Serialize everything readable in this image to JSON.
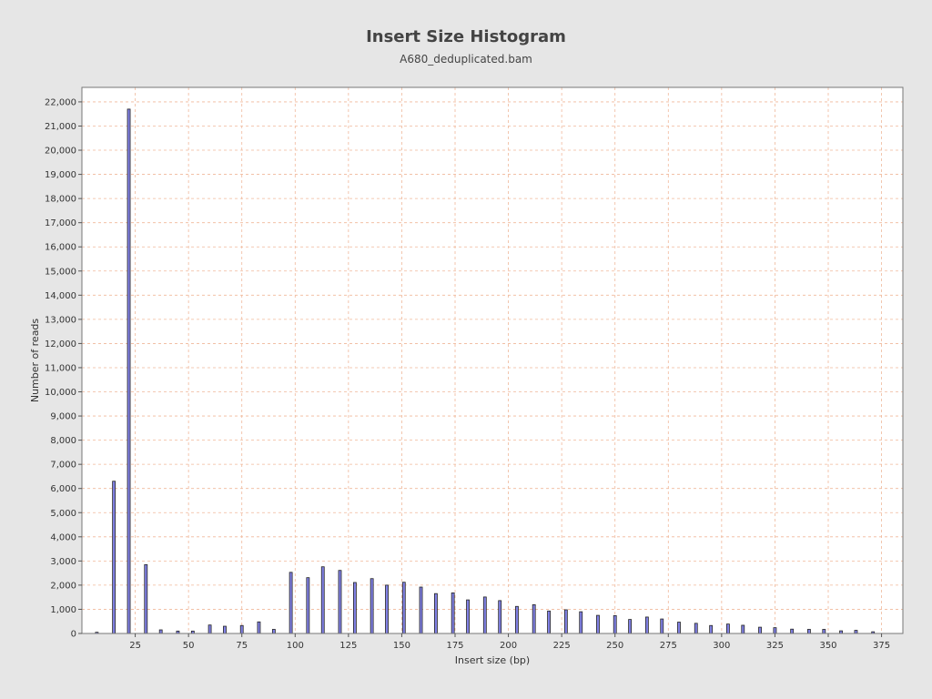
{
  "chart_data": {
    "type": "bar",
    "title": "Insert Size Histogram",
    "subtitle": "A680_deduplicated.bam",
    "xlabel": "Insert size (bp)",
    "ylabel": "Number of reads",
    "xlim": [
      0,
      385
    ],
    "ylim": [
      0,
      22600
    ],
    "grid": true,
    "x_ticks": [
      25,
      50,
      75,
      100,
      125,
      150,
      175,
      200,
      225,
      250,
      275,
      300,
      325,
      350,
      375
    ],
    "x_tick_labels": [
      "25",
      "50",
      "75",
      "100",
      "125",
      "150",
      "175",
      "200",
      "225",
      "250",
      "275",
      "300",
      "325",
      "350",
      "375"
    ],
    "y_ticks": [
      0,
      1000,
      2000,
      3000,
      4000,
      5000,
      6000,
      7000,
      8000,
      9000,
      10000,
      11000,
      12000,
      13000,
      14000,
      15000,
      16000,
      17000,
      18000,
      19000,
      20000,
      21000,
      22000
    ],
    "y_tick_labels": [
      "0",
      "1,000",
      "2,000",
      "3,000",
      "4,000",
      "5,000",
      "6,000",
      "7,000",
      "8,000",
      "9,000",
      "10,000",
      "11,000",
      "12,000",
      "13,000",
      "14,000",
      "15,000",
      "16,000",
      "17,000",
      "18,000",
      "19,000",
      "20,000",
      "21,000",
      "22,000"
    ],
    "x": [
      7,
      15,
      22,
      30,
      37,
      45,
      52,
      60,
      67,
      75,
      83,
      90,
      98,
      106,
      113,
      121,
      128,
      136,
      143,
      151,
      159,
      166,
      174,
      181,
      189,
      196,
      204,
      212,
      219,
      227,
      234,
      242,
      250,
      257,
      265,
      272,
      280,
      288,
      295,
      303,
      310,
      318,
      325,
      333,
      341,
      348,
      356,
      363,
      371
    ],
    "values": [
      50,
      6300,
      21700,
      2850,
      150,
      100,
      100,
      350,
      300,
      330,
      480,
      170,
      2530,
      2310,
      2760,
      2610,
      2110,
      2270,
      2000,
      2120,
      1920,
      1650,
      1680,
      1390,
      1510,
      1360,
      1120,
      1190,
      930,
      980,
      900,
      750,
      740,
      580,
      680,
      600,
      470,
      420,
      330,
      390,
      340,
      260,
      240,
      180,
      170,
      170,
      110,
      130,
      70
    ],
    "bar_color": "#8282e6"
  }
}
